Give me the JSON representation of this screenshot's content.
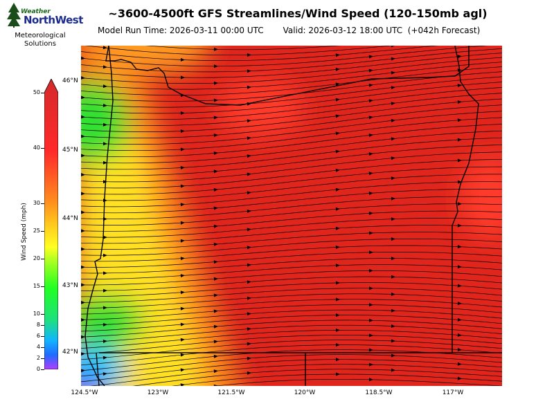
{
  "logo": {
    "weather": "Weather",
    "brand": "NorthWest",
    "subtitle_line1": "Meteorological",
    "subtitle_line2": "Solutions"
  },
  "header": {
    "title": "~3600-4500ft GFS Streamlines/Wind Speed (120-150mb agl)",
    "model_run": "Model Run Time: 2026-03-11 00:00 UTC",
    "valid": "Valid: 2026-03-12 18:00 UTC  (+042h Forecast)"
  },
  "map": {
    "lat_labels": [
      "46°N",
      "45°N",
      "44°N",
      "43°N",
      "42°N"
    ],
    "lon_labels": [
      "124.5°W",
      "123°W",
      "121.5°W",
      "120°W",
      "118.5°W",
      "117°W"
    ],
    "dominant_wind": "westerly"
  },
  "colorbar": {
    "label": "Wind Speed (mph)",
    "ticks": [
      "0",
      "2",
      "4",
      "6",
      "8",
      "10",
      "15",
      "20",
      "25",
      "30",
      "40",
      "50"
    ],
    "colors": [
      "#b23cff",
      "#1e6bff",
      "#12b5ff",
      "#1fe07e",
      "#22ff22",
      "#b6ff22",
      "#ffff22",
      "#ffc81e",
      "#ff8c1e",
      "#ff2a2a",
      "#d42a2a"
    ]
  }
}
